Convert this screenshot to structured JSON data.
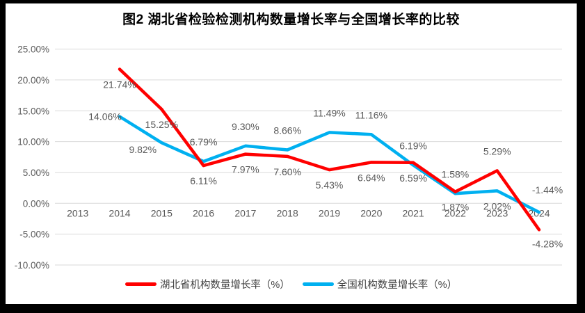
{
  "frame_color": "#000000",
  "background_color": "#ffffff",
  "chart_data": {
    "type": "line",
    "title": "图2  湖北省检验检测机构数量增长率与全国增长率的比较",
    "xlabel": "",
    "ylabel": "",
    "categories": [
      "2013",
      "2014",
      "2015",
      "2016",
      "2017",
      "2018",
      "2019",
      "2020",
      "2021",
      "2022",
      "2023",
      "2024"
    ],
    "ylim": [
      -10,
      25
    ],
    "grid": true,
    "gridline_color": "#D9D9D9",
    "axis_label_color": "#595959",
    "data_label_color": "#595959",
    "legend_position": "bottom",
    "y_ticks": [
      {
        "label": "25.00%",
        "value": 25
      },
      {
        "label": "20.00%",
        "value": 20
      },
      {
        "label": "15.00%",
        "value": 15
      },
      {
        "label": "10.00%",
        "value": 10
      },
      {
        "label": "5.00%",
        "value": 5
      },
      {
        "label": "0.00%",
        "value": 0
      },
      {
        "label": "-5.00%",
        "value": -5
      },
      {
        "label": "-10.00%",
        "value": -10
      }
    ],
    "series": [
      {
        "id": "national-series",
        "name": "全国机构数量增长率（%）",
        "color": "#00B0F0",
        "values": [
          null,
          14.06,
          9.82,
          6.79,
          9.3,
          8.66,
          11.49,
          11.16,
          6.19,
          1.58,
          2.02,
          -1.44
        ],
        "point_labels": [
          null,
          "14.06%",
          "9.82%",
          "6.79%",
          "9.30%",
          "8.66%",
          "11.49%",
          "11.16%",
          "6.19%",
          "1.58%",
          "2.02%",
          "-1.44%"
        ],
        "label_placement": [
          null,
          "left",
          "below-left",
          "above",
          "above",
          "above",
          "above",
          "above",
          "above",
          "above",
          "below",
          "above-right"
        ]
      },
      {
        "id": "hubei-series",
        "name": "湖北省机构数量增长率（%）",
        "color": "#FF0000",
        "values": [
          null,
          21.74,
          15.25,
          6.11,
          7.97,
          7.6,
          5.43,
          6.64,
          6.59,
          1.87,
          5.29,
          -4.28
        ],
        "point_labels": [
          null,
          "21.74%",
          "15.25%",
          "6.11%",
          "7.97%",
          "7.60%",
          "5.43%",
          "6.64%",
          "6.59%",
          "1.87%",
          "5.29%",
          "-4.28%"
        ],
        "label_placement": [
          null,
          "below",
          "below",
          "below",
          "below",
          "below",
          "below",
          "below",
          "below",
          "below",
          "above",
          "below-right"
        ]
      }
    ],
    "legend_order": [
      "hubei-series",
      "national-series"
    ]
  }
}
